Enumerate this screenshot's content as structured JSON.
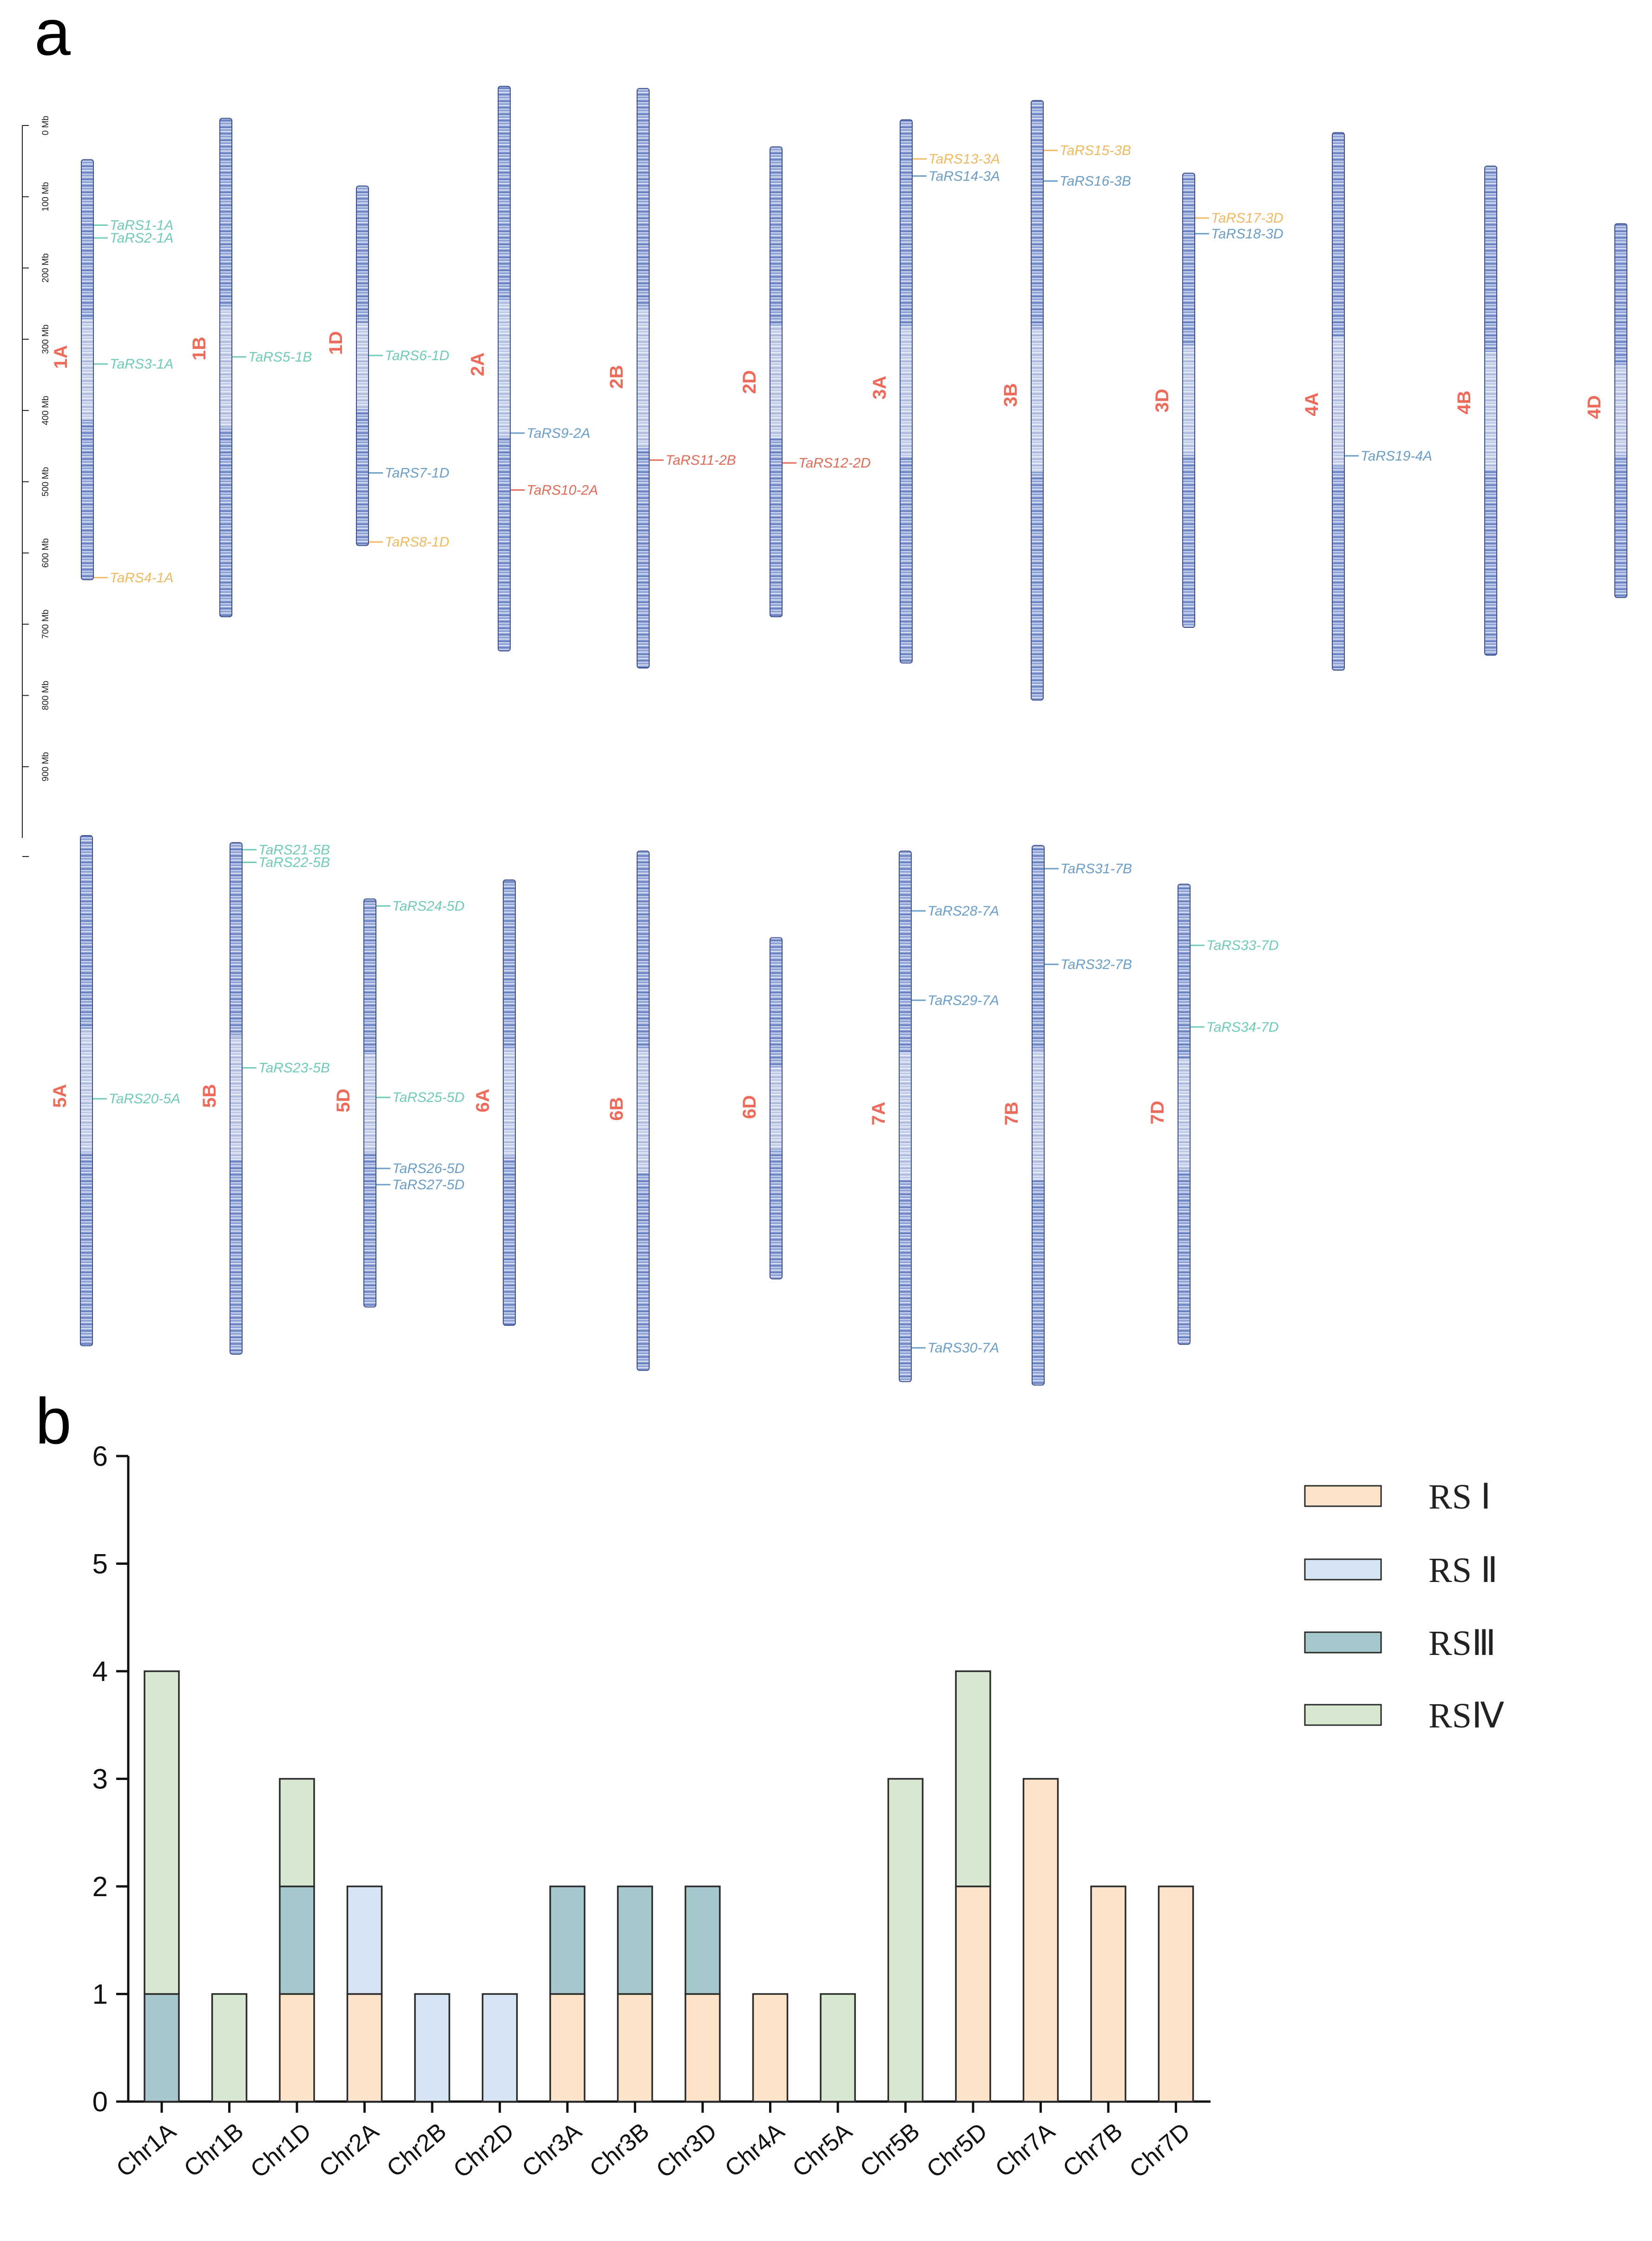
{
  "panel_a": {
    "label": "a",
    "scale_bar": {
      "unit": "Mb",
      "ticks": [
        "0 Mb",
        "100 Mb",
        "200 Mb",
        "300 Mb",
        "400 Mb",
        "500 Mb",
        "600 Mb",
        "700 Mb",
        "800 Mb",
        "900 Mb"
      ]
    },
    "class_colors": {
      "RSI": "#f0b860",
      "RSIII": "#6a9ec8",
      "RSIV": "#6fcab8",
      "red": "#e06a55"
    },
    "chr_name_color": "#ee6a5a",
    "bar_color": "#6f86c4",
    "rows": [
      {
        "chromosomes": [
          {
            "name": "1A",
            "start_mb": 48,
            "end_mb": 638,
            "genes": [
              {
                "label": "TaRS1-1A",
                "pos_mb": 140,
                "cls": "RSIV"
              },
              {
                "label": "TaRS2-1A",
                "pos_mb": 158,
                "cls": "RSIV"
              },
              {
                "label": "TaRS3-1A",
                "pos_mb": 335,
                "cls": "RSIV"
              },
              {
                "label": "TaRS4-1A",
                "pos_mb": 635,
                "cls": "RSI"
              }
            ]
          },
          {
            "name": "1B",
            "start_mb": -10,
            "end_mb": 690,
            "genes": [
              {
                "label": "TaRS5-1B",
                "pos_mb": 325,
                "cls": "RSIV"
              }
            ]
          },
          {
            "name": "1D",
            "start_mb": 85,
            "end_mb": 590,
            "genes": [
              {
                "label": "TaRS6-1D",
                "pos_mb": 323,
                "cls": "RSIV"
              },
              {
                "label": "TaRS7-1D",
                "pos_mb": 488,
                "cls": "RSIII"
              },
              {
                "label": "TaRS8-1D",
                "pos_mb": 585,
                "cls": "RSI"
              }
            ]
          },
          {
            "name": "2A",
            "start_mb": -55,
            "end_mb": 738,
            "genes": [
              {
                "label": "TaRS9-2A",
                "pos_mb": 432,
                "cls": "RSIII"
              },
              {
                "label": "TaRS10-2A",
                "pos_mb": 512,
                "cls": "red"
              }
            ]
          },
          {
            "name": "2B",
            "start_mb": -52,
            "end_mb": 762,
            "genes": [
              {
                "label": "TaRS11-2B",
                "pos_mb": 470,
                "cls": "red"
              }
            ]
          },
          {
            "name": "2D",
            "start_mb": 30,
            "end_mb": 690,
            "genes": [
              {
                "label": "TaRS12-2D",
                "pos_mb": 474,
                "cls": "red"
              }
            ]
          },
          {
            "name": "3A",
            "start_mb": -8,
            "end_mb": 755,
            "genes": [
              {
                "label": "TaRS13-3A",
                "pos_mb": 47,
                "cls": "RSI"
              },
              {
                "label": "TaRS14-3A",
                "pos_mb": 71,
                "cls": "RSIII"
              }
            ]
          },
          {
            "name": "3B",
            "start_mb": -35,
            "end_mb": 807,
            "genes": [
              {
                "label": "TaRS15-3B",
                "pos_mb": 35,
                "cls": "RSI"
              },
              {
                "label": "TaRS16-3B",
                "pos_mb": 78,
                "cls": "RSIII"
              }
            ]
          },
          {
            "name": "3D",
            "start_mb": 67,
            "end_mb": 705,
            "genes": [
              {
                "label": "TaRS17-3D",
                "pos_mb": 130,
                "cls": "RSI"
              },
              {
                "label": "TaRS18-3D",
                "pos_mb": 152,
                "cls": "RSIII"
              }
            ]
          },
          {
            "name": "4A",
            "start_mb": 10,
            "end_mb": 765,
            "genes": [
              {
                "label": "TaRS19-4A",
                "pos_mb": 464,
                "cls": "RSIII"
              }
            ]
          },
          {
            "name": "4B",
            "start_mb": 57,
            "end_mb": 744,
            "genes": []
          },
          {
            "name": "4D",
            "start_mb": 138,
            "end_mb": 663,
            "genes": []
          }
        ]
      },
      {
        "chromosomes": [
          {
            "name": "5A",
            "start_mb": 0,
            "end_mb": 725,
            "genes": [
              {
                "label": "TaRS20-5A",
                "pos_mb": 374,
                "cls": "RSIV"
              }
            ]
          },
          {
            "name": "5B",
            "start_mb": 10,
            "end_mb": 737,
            "genes": [
              {
                "label": "TaRS21-5B",
                "pos_mb": 20,
                "cls": "RSIV"
              },
              {
                "label": "TaRS22-5B",
                "pos_mb": 38,
                "cls": "RSIV"
              },
              {
                "label": "TaRS23-5B",
                "pos_mb": 330,
                "cls": "RSIV"
              }
            ]
          },
          {
            "name": "5D",
            "start_mb": 90,
            "end_mb": 670,
            "genes": [
              {
                "label": "TaRS24-5D",
                "pos_mb": 100,
                "cls": "RSIV"
              },
              {
                "label": "TaRS25-5D",
                "pos_mb": 372,
                "cls": "RSIV"
              },
              {
                "label": "TaRS26-5D",
                "pos_mb": 473,
                "cls": "RSIII"
              },
              {
                "label": "TaRS27-5D",
                "pos_mb": 496,
                "cls": "RSIII"
              }
            ]
          },
          {
            "name": "6A",
            "start_mb": 63,
            "end_mb": 696,
            "genes": []
          },
          {
            "name": "6B",
            "start_mb": 22,
            "end_mb": 760,
            "genes": []
          },
          {
            "name": "6D",
            "start_mb": 145,
            "end_mb": 630,
            "genes": []
          },
          {
            "name": "7A",
            "start_mb": 22,
            "end_mb": 776,
            "genes": [
              {
                "label": "TaRS28-7A",
                "pos_mb": 107,
                "cls": "RSIII"
              },
              {
                "label": "TaRS29-7A",
                "pos_mb": 234,
                "cls": "RSIII"
              },
              {
                "label": "TaRS30-7A",
                "pos_mb": 728,
                "cls": "RSIII"
              }
            ]
          },
          {
            "name": "7B",
            "start_mb": 14,
            "end_mb": 781,
            "genes": [
              {
                "label": "TaRS31-7B",
                "pos_mb": 47,
                "cls": "RSIII"
              },
              {
                "label": "TaRS32-7B",
                "pos_mb": 183,
                "cls": "RSIII"
              }
            ]
          },
          {
            "name": "7D",
            "start_mb": 69,
            "end_mb": 723,
            "genes": [
              {
                "label": "TaRS33-7D",
                "pos_mb": 156,
                "cls": "RSIV"
              },
              {
                "label": "TaRS34-7D",
                "pos_mb": 272,
                "cls": "RSIV"
              }
            ]
          }
        ]
      }
    ]
  },
  "chart_data": {
    "type": "bar",
    "stacked": true,
    "panel_label": "b",
    "title": "",
    "xlabel": "",
    "ylabel": "",
    "ylim": [
      0,
      6
    ],
    "yticks": [
      "0",
      "1",
      "2",
      "3",
      "4",
      "5",
      "6"
    ],
    "categories": [
      "Chr1A",
      "Chr1B",
      "Chr1D",
      "Chr2A",
      "Chr2B",
      "Chr2D",
      "Chr3A",
      "Chr3B",
      "Chr3D",
      "Chr4A",
      "Chr5A",
      "Chr5B",
      "Chr5D",
      "Chr7A",
      "Chr7B",
      "Chr7D"
    ],
    "series": [
      {
        "name": "RS Ⅰ",
        "color": "#fde3c8",
        "values": [
          0,
          0,
          1,
          1,
          0,
          0,
          1,
          1,
          1,
          1,
          0,
          0,
          2,
          3,
          2,
          2
        ]
      },
      {
        "name": "RS Ⅱ",
        "color": "#d6e5f3",
        "values": [
          0,
          0,
          0,
          1,
          1,
          1,
          0,
          0,
          0,
          0,
          0,
          0,
          0,
          0,
          0,
          0
        ]
      },
      {
        "name": "RSⅢ",
        "color": "#a4c8cb",
        "values": [
          1,
          0,
          1,
          0,
          0,
          0,
          1,
          1,
          1,
          0,
          0,
          0,
          0,
          0,
          0,
          0
        ]
      },
      {
        "name": "RSⅣ",
        "color": "#d6e8cf",
        "values": [
          3,
          1,
          1,
          0,
          0,
          0,
          0,
          0,
          0,
          0,
          1,
          3,
          2,
          0,
          0,
          0
        ]
      }
    ],
    "legend_position": "top-right"
  }
}
